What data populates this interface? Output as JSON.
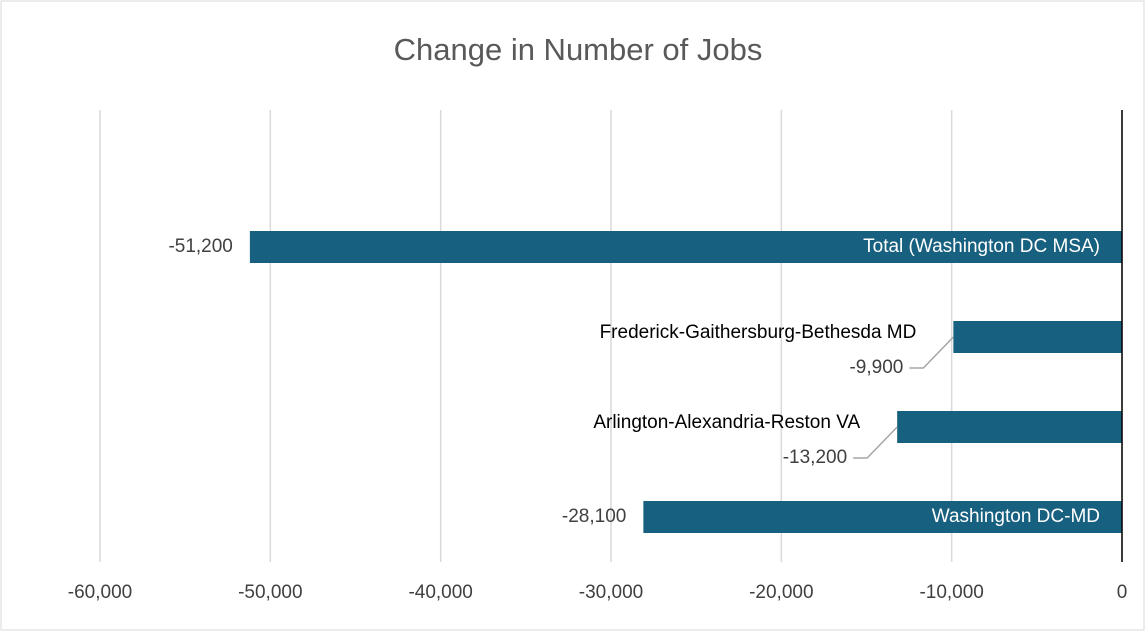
{
  "chart_data": {
    "type": "bar",
    "orientation": "horizontal",
    "title": "Change in Number of Jobs",
    "categories": [
      "Total (Washington DC MSA)",
      "Frederick-Gaithersburg-Bethesda MD",
      "Arlington-Alexandria-Reston VA",
      "Washington DC-MD"
    ],
    "values": [
      -51200,
      -9900,
      -13200,
      -28100
    ],
    "value_labels": [
      "-51,200",
      "-9,900",
      "-13,200",
      "-28,100"
    ],
    "color": "#17607f",
    "xlim": [
      -60000,
      0
    ],
    "xticks": [
      {
        "value": -60000,
        "label": "-60,000"
      },
      {
        "value": -50000,
        "label": "-50,000"
      },
      {
        "value": -40000,
        "label": "-40,000"
      },
      {
        "value": -30000,
        "label": "-30,000"
      },
      {
        "value": -20000,
        "label": "-20,000"
      },
      {
        "value": -10000,
        "label": "-10,000"
      },
      0
    ],
    "grid": true
  }
}
